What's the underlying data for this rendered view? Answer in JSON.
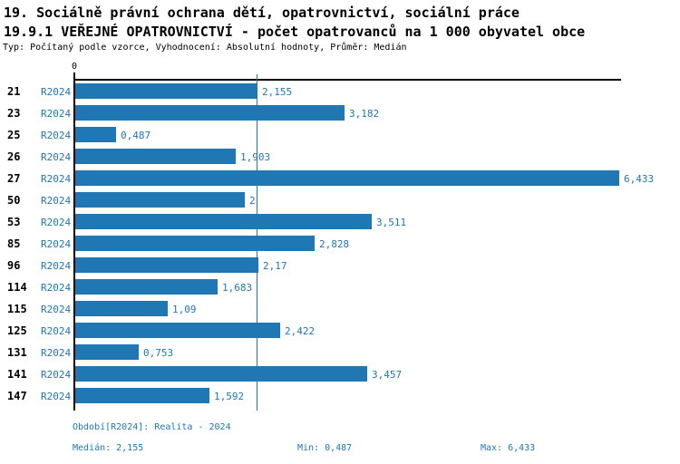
{
  "header": {
    "title_line1": "19. Sociálně právní ochrana dětí, opatrovnictví, sociální práce",
    "title_line2": "19.9.1 VEŘEJNÉ OPATROVNICTVÍ - počet opatrovanců na 1 000 obyvatel obce",
    "subtitle": "Typ: Počítaný podle vzorce, Vyhodnocení: Absolutní hodnoty, Průměr: Medián"
  },
  "chart_data": {
    "type": "bar",
    "orientation": "horizontal",
    "title": "19.9.1 VEŘEJNÉ OPATROVNICTVÍ - počet opatrovanců na 1 000 obyvatel obce",
    "categories": [
      "21",
      "23",
      "25",
      "26",
      "27",
      "50",
      "53",
      "85",
      "96",
      "114",
      "115",
      "125",
      "131",
      "141",
      "147"
    ],
    "series": [
      {
        "name": "R2024",
        "values": [
          2.155,
          3.182,
          0.487,
          1.903,
          6.433,
          2,
          3.511,
          2.828,
          2.17,
          1.683,
          1.09,
          2.422,
          0.753,
          3.457,
          1.592
        ],
        "labels": [
          "2,155",
          "3,182",
          "0,487",
          "1,903",
          "6,433",
          "2",
          "3,511",
          "2,828",
          "2,17",
          "1,683",
          "1,09",
          "2,422",
          "0,753",
          "3,457",
          "1,592"
        ]
      }
    ],
    "xlabel": "",
    "ylabel": "",
    "xlim": [
      0,
      6.433
    ],
    "x_axis_tick": "0",
    "grid": false,
    "legend_position": "none",
    "median_value": 2.155,
    "bar_color": "#1f77b4",
    "median_line_color": "#1f77b4",
    "axis_color": "#000000"
  },
  "footer": {
    "period": "Období[R2024]: Realita - 2024",
    "median": "Medián: 2,155",
    "min": "Min: 0,487",
    "max": "Max: 6,433"
  }
}
